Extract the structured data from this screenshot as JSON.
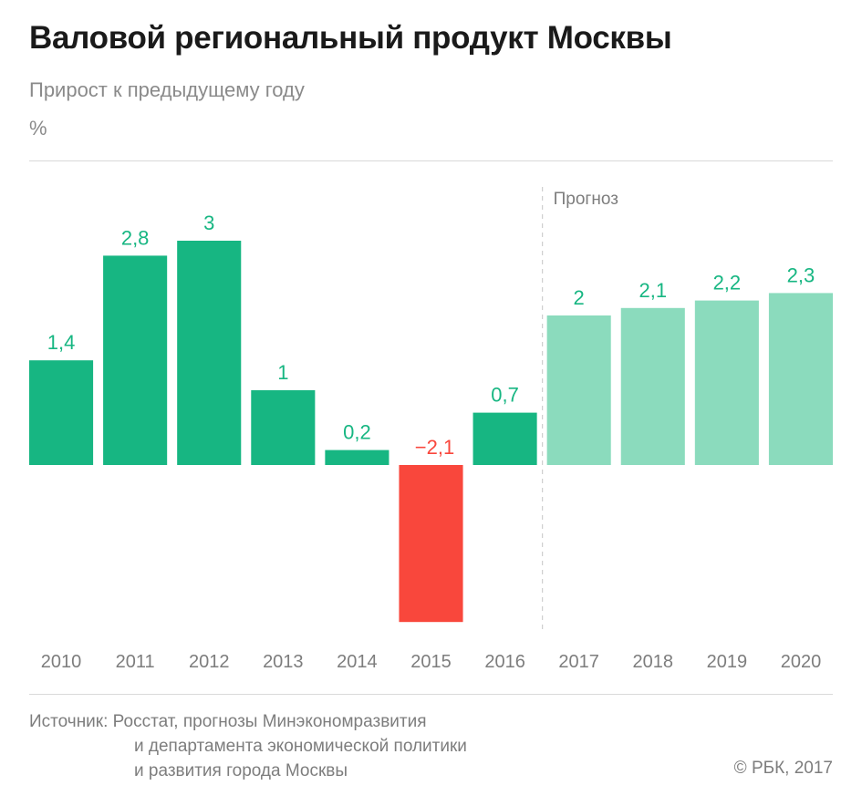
{
  "title": "Валовой региональный продукт Москвы",
  "subtitle": "Прирост к предыдущему году",
  "unit": "%",
  "source": {
    "label": "Источник:",
    "line1": "Росстат, прогнозы Минэкономразвития",
    "line2": "и департамента экономической политики",
    "line3": "и развития города Москвы"
  },
  "copyright": "© РБК, 2017",
  "colors": {
    "positive": "#17b682",
    "negative": "#f9473c",
    "forecast": "#8bdbbd",
    "label_positive": "#17b682",
    "label_negative": "#f9473c",
    "axis_text": "#7d7d7d"
  },
  "chart_data": {
    "type": "bar",
    "categories": [
      "2010",
      "2011",
      "2012",
      "2013",
      "2014",
      "2015",
      "2016",
      "2017",
      "2018",
      "2019",
      "2020"
    ],
    "values": [
      1.4,
      2.8,
      3,
      1,
      0.2,
      -2.1,
      0.7,
      2,
      2.1,
      2.2,
      2.3
    ],
    "value_labels": [
      "1,4",
      "2,8",
      "3",
      "1",
      "0,2",
      "−2,1",
      "0,7",
      "2",
      "2,1",
      "2,2",
      "2,3"
    ],
    "forecast": [
      false,
      false,
      false,
      false,
      false,
      false,
      false,
      true,
      true,
      true,
      true
    ],
    "forecast_label": "Прогноз",
    "ylim": [
      -2.1,
      3
    ],
    "grid": false,
    "legend": "none"
  }
}
